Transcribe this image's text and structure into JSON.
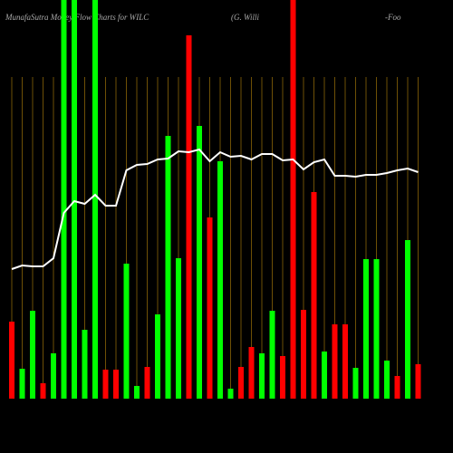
{
  "chart_data": {
    "type": "bar",
    "title_parts": [
      "MunafaSutra  Money Flow  Charts for WILC",
      "(G. Willi",
      "-Foo"
    ],
    "categories": [
      null,
      null,
      null,
      null,
      null,
      null,
      null,
      null,
      null,
      null,
      null,
      null,
      null,
      null,
      null,
      null,
      null,
      null,
      null,
      null,
      null,
      null,
      null,
      null,
      null,
      null,
      null,
      null,
      null,
      null,
      null,
      null,
      null,
      null,
      null,
      null,
      null,
      null,
      null,
      null
    ],
    "ylim": [
      0,
      440
    ],
    "guide_color": "#b8860b",
    "series": [
      {
        "type": "bar",
        "values": [
          85,
          33,
          97,
          17,
          50,
          440,
          440,
          76,
          440,
          32,
          32,
          149,
          14,
          35,
          93,
          290,
          155,
          401,
          301,
          200,
          262,
          11,
          35,
          57,
          50,
          97,
          47,
          440,
          98,
          228,
          52,
          82,
          82,
          34,
          154,
          154,
          42,
          25,
          175,
          38
        ],
        "colors": [
          "#ff0000",
          "#00ff00",
          "#00ff00",
          "#ff0000",
          "#00ff00",
          "#00ff00",
          "#00ff00",
          "#00ff00",
          "#00ff00",
          "#ff0000",
          "#ff0000",
          "#00ff00",
          "#00ff00",
          "#ff0000",
          "#00ff00",
          "#00ff00",
          "#00ff00",
          "#ff0000",
          "#00ff00",
          "#ff0000",
          "#00ff00",
          "#00ff00",
          "#ff0000",
          "#ff0000",
          "#00ff00",
          "#00ff00",
          "#ff0000",
          "#ff0000",
          "#ff0000",
          "#ff0000",
          "#00ff00",
          "#ff0000",
          "#ff0000",
          "#00ff00",
          "#00ff00",
          "#00ff00",
          "#00ff00",
          "#ff0000",
          "#00ff00",
          "#ff0000"
        ]
      },
      {
        "type": "line",
        "color": "#ffffff",
        "values": [
          143,
          147,
          146,
          146,
          155,
          205,
          218,
          215,
          225,
          213,
          213,
          252,
          258,
          259,
          264,
          265,
          273,
          272,
          275,
          262,
          272,
          267,
          268,
          264,
          270,
          270,
          263,
          264,
          253,
          261,
          264,
          246,
          246,
          245,
          247,
          247,
          249,
          252,
          254,
          250
        ]
      }
    ]
  }
}
